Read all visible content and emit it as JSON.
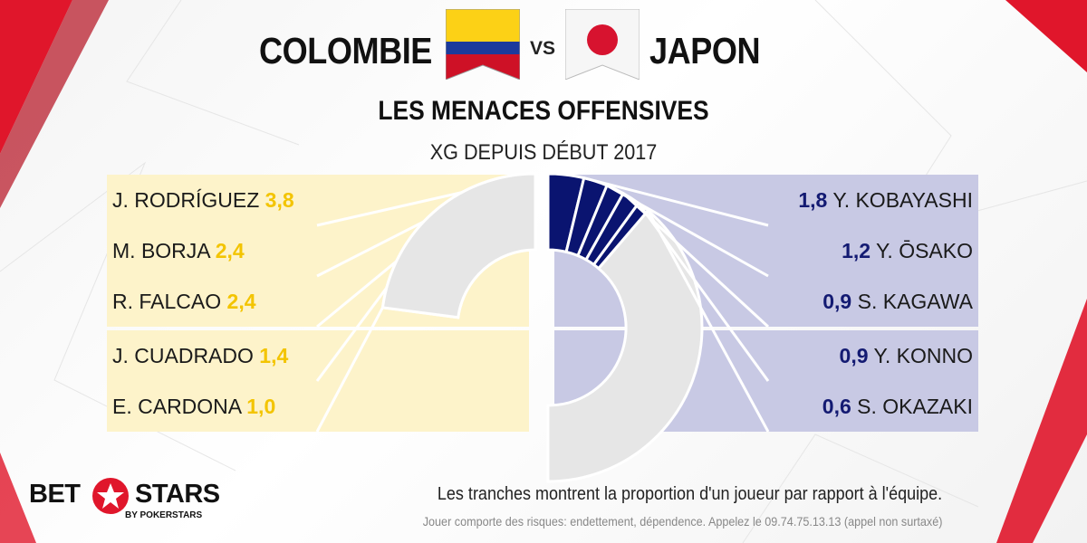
{
  "header": {
    "team_left": "COLOMBIE",
    "vs": "VS",
    "team_right": "JAPON"
  },
  "title": "LES MENACES OFFENSIVES",
  "subtitle": "XG DEPUIS DÉBUT 2017",
  "colors": {
    "colombia": "#f9d01f",
    "colombia_row": "#fdf3ca",
    "japan": "#0a1470",
    "japan_row": "#c8c9e4",
    "rest": "#e6e6e6",
    "accent_red": "#e0162b"
  },
  "chart_data": [
    {
      "type": "pie",
      "title": "COLOMBIE",
      "categories": [
        "J. RODRÍGUEZ",
        "M. BORJA",
        "R. FALCAO",
        "J. CUADRADO",
        "E. CARDONA"
      ],
      "values": [
        3.8,
        2.4,
        2.4,
        1.4,
        1.0
      ],
      "value_labels": [
        "3,8",
        "2,4",
        "2,4",
        "1,4",
        "1,0"
      ],
      "side": "left"
    },
    {
      "type": "pie",
      "title": "JAPON",
      "categories": [
        "Y. KOBAYASHI",
        "Y. ŌSAKO",
        "S. KAGAWA",
        "Y. KONNO",
        "S. OKAZAKI"
      ],
      "values": [
        1.8,
        1.2,
        0.9,
        0.9,
        0.6
      ],
      "value_labels": [
        "1,8",
        "1,2",
        "0,9",
        "0,9",
        "0,6"
      ],
      "side": "right"
    }
  ],
  "footnote": "Les tranches montrent la proportion d'un joueur par rapport à l'équipe.",
  "disclaimer": "Jouer comporte des risques: endettement, dépendence. Appelez le 09.74.75.13.13  (appel non surtaxé)",
  "logo": {
    "part1": "BET",
    "part2": "STARS",
    "sub": "BY POKERSTARS"
  }
}
